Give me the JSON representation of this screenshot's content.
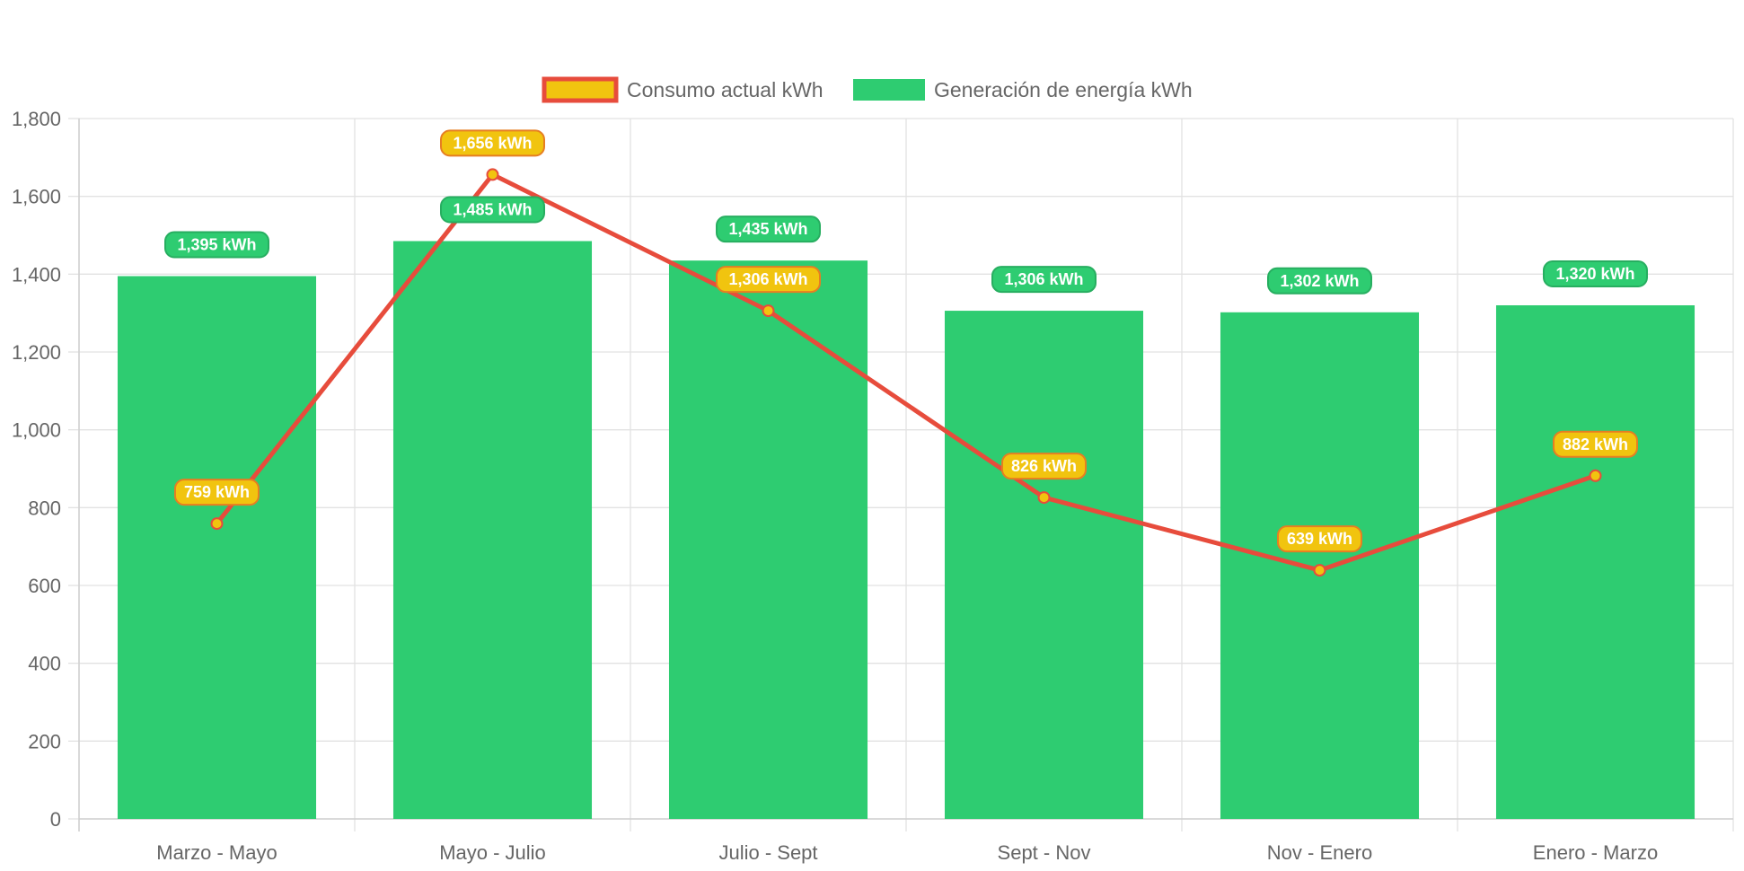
{
  "chart_data": {
    "type": "bar",
    "categories": [
      "Marzo - Mayo",
      "Mayo - Julio",
      "Julio - Sept",
      "Sept - Nov",
      "Nov - Enero",
      "Enero - Marzo"
    ],
    "series": [
      {
        "name": "Consumo actual kWh",
        "type": "line",
        "values": [
          759,
          1656,
          1306,
          826,
          639,
          882
        ],
        "labels": [
          "759 kWh",
          "1,656 kWh",
          "1,306 kWh",
          "826 kWh",
          "639 kWh",
          "882 kWh"
        ],
        "color": "#e74c3c",
        "fill": "#f1c40f"
      },
      {
        "name": "Generación de energía kWh",
        "type": "bar",
        "values": [
          1395,
          1485,
          1435,
          1306,
          1302,
          1320
        ],
        "labels": [
          "1,395 kWh",
          "1,485 kWh",
          "1,435 kWh",
          "1,306 kWh",
          "1,302 kWh",
          "1,320 kWh"
        ],
        "color": "#2ecc71"
      }
    ],
    "ylim": [
      0,
      1800
    ],
    "yticks": [
      0,
      200,
      400,
      600,
      800,
      1000,
      1200,
      1400,
      1600,
      1800
    ],
    "ytick_labels": [
      "0",
      "200",
      "400",
      "600",
      "800",
      "1,000",
      "1,200",
      "1,400",
      "1,600",
      "1,800"
    ],
    "grid": true,
    "legend": "top-center",
    "title": "",
    "xlabel": "",
    "ylabel": ""
  }
}
